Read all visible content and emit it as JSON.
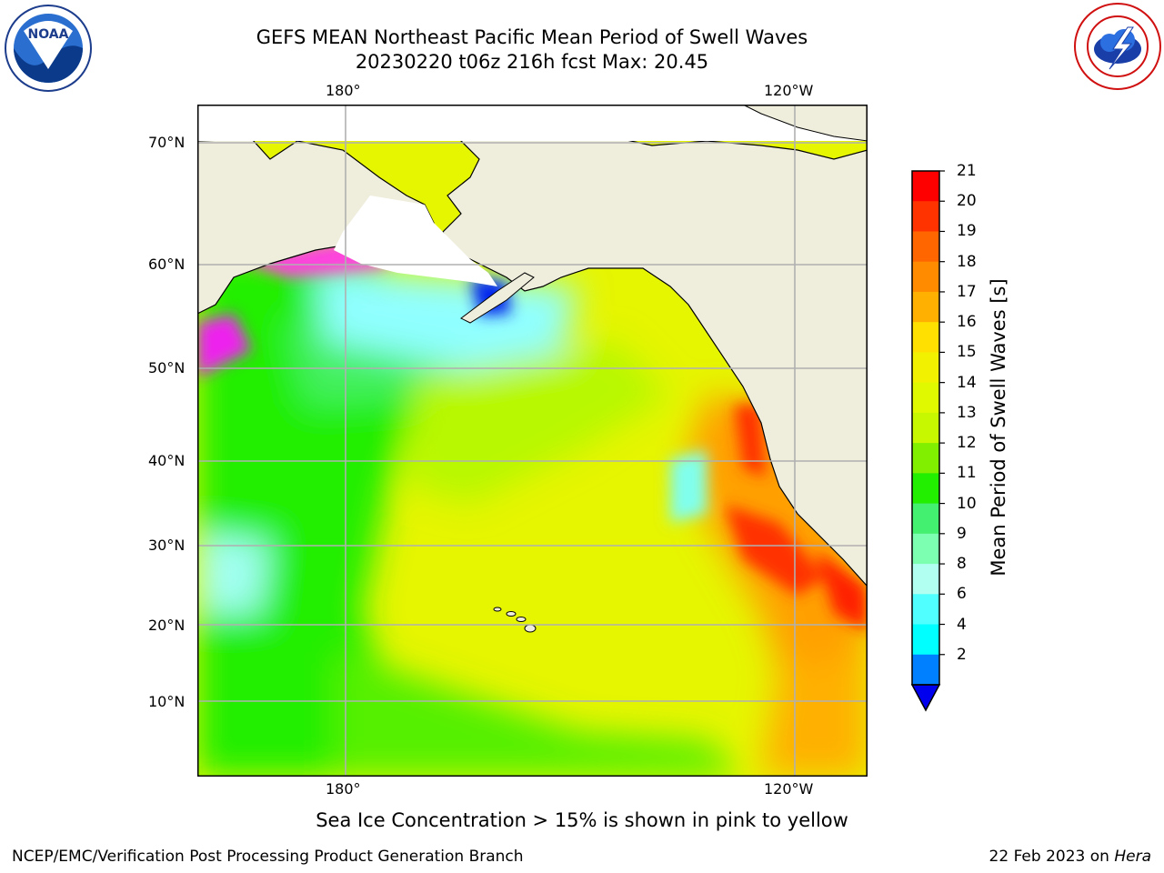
{
  "title_line1": "GEFS MEAN Northeast Pacific Mean Period of Swell Waves",
  "title_line2": "20230220 t06z 216h fcst   Max: 20.45",
  "map": {
    "lon_labels": [
      "180°",
      "120°W"
    ],
    "lat_labels": [
      "70°N",
      "60°N",
      "50°N",
      "40°N",
      "30°N",
      "20°N",
      "10°N"
    ],
    "land_color": "#efeddc",
    "ocean_grid_color": "#b0b0b0"
  },
  "colorbar": {
    "label": "Mean Period of Swell Waves [s]",
    "ticks": [
      "21",
      "20",
      "19",
      "18",
      "17",
      "16",
      "15",
      "14",
      "13",
      "12",
      "11",
      "10",
      "9",
      "8",
      "6",
      "4",
      "2"
    ],
    "colors": [
      "#ff0000",
      "#ff3300",
      "#ff6600",
      "#ff8c00",
      "#ffb000",
      "#ffe000",
      "#f2f200",
      "#e0f800",
      "#c8f800",
      "#80f000",
      "#22ee00",
      "#44f070",
      "#7cffb0",
      "#b0fff0",
      "#50ffff",
      "#00ffff",
      "#0080ff"
    ],
    "extend_color": "#0000ee"
  },
  "sea_ice_note": "Sea Ice Concentration > 15% is shown in pink to yellow",
  "footer_left": "NCEP/EMC/Verification Post Processing Product Generation Branch",
  "footer_right_prefix": "22 Feb 2023 on ",
  "footer_right_host": "Hera",
  "logos": {
    "noaa": "NOAA",
    "nws": "NATIONAL WEATHER SERVICE"
  }
}
